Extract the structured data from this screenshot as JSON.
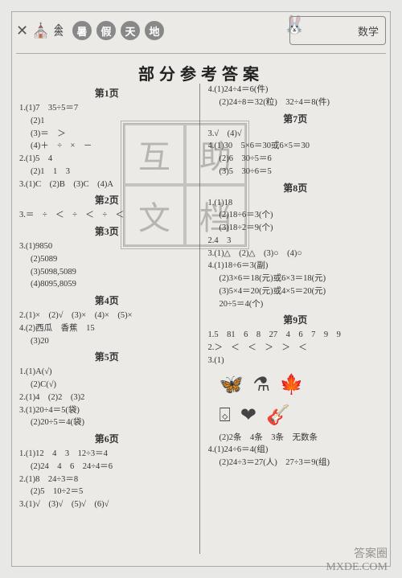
{
  "header": {
    "bubbles": [
      "暑",
      "假",
      "天",
      "地"
    ],
    "subject": "数学",
    "left_deco": "✕ ⛪ 𖠰",
    "rabbit": "🐰"
  },
  "title": "部分参考答案",
  "stamp": [
    "互",
    "助",
    "文",
    "档"
  ],
  "footer_wm": {
    "l1": "答案圈",
    "l2": "MXDE.COM"
  },
  "left": {
    "p1": {
      "head": "第1页",
      "l": [
        "1.(1)7　35÷5＝7",
        "(2)1",
        "(3)＝　＞",
        "(4)＋　÷　×　－",
        "2.(1)5　4",
        "(2)1　1　3",
        "3.(1)C　(2)B　(3)C　(4)A"
      ]
    },
    "p2": {
      "head": "第2页",
      "l": [
        "3.＝　÷　＜　÷　＜　÷　＜"
      ]
    },
    "p3": {
      "head": "第3页",
      "l": [
        "3.(1)9850",
        "(2)5089",
        "(3)5098,5089",
        "(4)8095,8059"
      ]
    },
    "p4": {
      "head": "第4页",
      "l": [
        "2.(1)×　(2)√　(3)×　(4)×　(5)×",
        "4.(2)西瓜　香蕉　15",
        "(3)20"
      ]
    },
    "p5": {
      "head": "第5页",
      "l": [
        "1.(1)A(√)",
        "(2)C(√)",
        "2.(1)4　(2)2　(3)2",
        "3.(1)20÷4＝5(袋)",
        "(2)20÷5＝4(袋)"
      ]
    },
    "p6": {
      "head": "第6页",
      "l": [
        "1.(1)12　4　3　12÷3＝4",
        "(2)24　4　6　24÷4＝6",
        "2.(1)8　24÷3＝8",
        "(2)5　10÷2＝5",
        "3.(1)√　(3)√　(5)√　(6)√"
      ]
    }
  },
  "right": {
    "cont6": {
      "l": [
        "4.(1)24÷4＝6(件)",
        "(2)24÷8＝32(粒)　32÷4＝8(件)"
      ]
    },
    "p7": {
      "head": "第7页",
      "l": [
        "3.√　(4)√",
        "4.(1)30　5×6＝30或6×5＝30",
        "(2)6　30÷5＝6",
        "(3)5　30÷6＝5"
      ]
    },
    "p8": {
      "head": "第8页",
      "l": [
        "1.(1)18",
        "(2)18÷6＝3(个)",
        "(3)18÷2＝9(个)",
        "2.4　3",
        "3.(1)△　(2)△　(3)○　(4)○",
        "4.(1)18÷6＝3(副)",
        "(2)3×6＝18(元)或6×3＝18(元)",
        "(3)5×4＝20(元)或4×5＝20(元)",
        "20÷5＝4(个)"
      ]
    },
    "p9": {
      "head": "第9页",
      "l1": "1.5　81　6　8　27　4　6　7　9　9",
      "l2": "2.＞　＜　＜　＞　＞　＜",
      "l3": "3.(1)",
      "shapes_legend": "(2)2条　4条　3条　无数条",
      "l4": [
        "4.(1)24÷6＝4(组)",
        "(2)24÷3＝27(人)　27÷3＝9(组)"
      ]
    }
  },
  "shapes": {
    "row1": [
      "🦋",
      "⚗",
      "🍁"
    ],
    "row2": [
      "⌺",
      "❤",
      "🎸"
    ]
  }
}
